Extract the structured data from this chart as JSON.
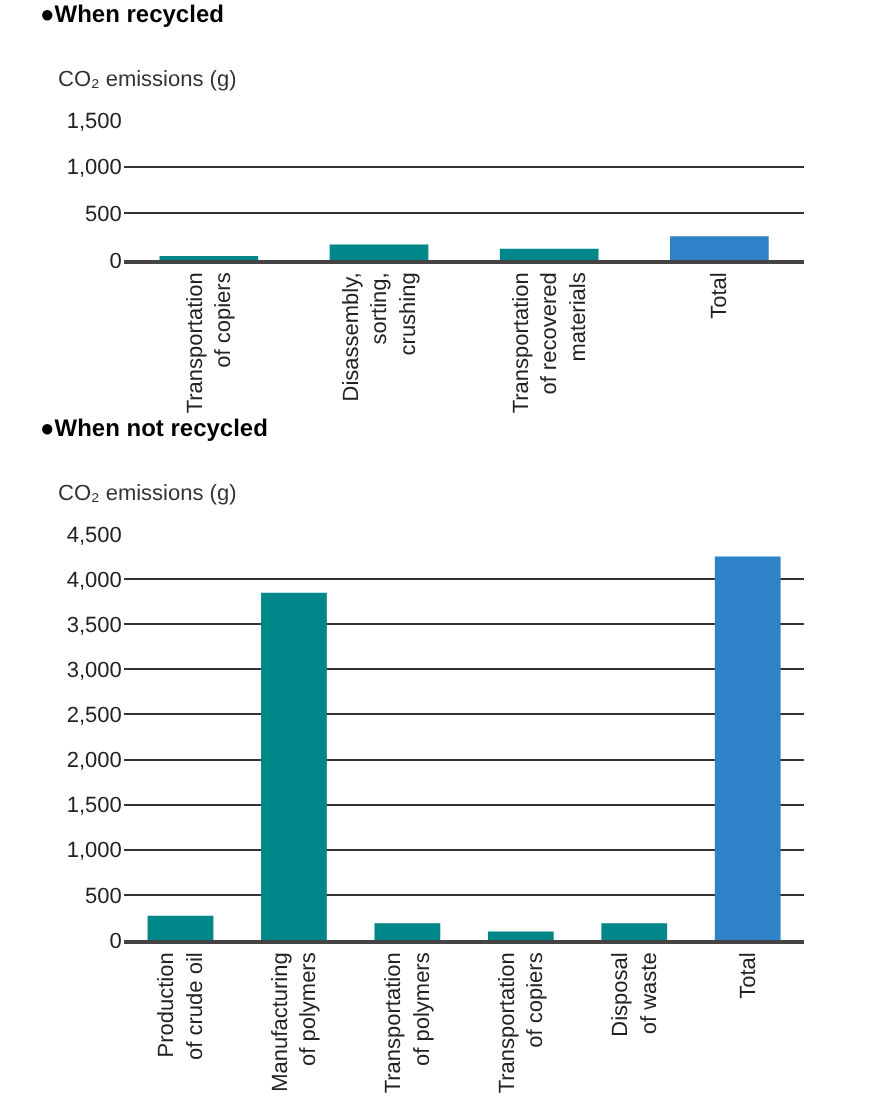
{
  "chart_data": [
    {
      "type": "bar",
      "title": "●When recycled",
      "ylabel": "CO₂ emissions (g)",
      "categories": [
        "Transportation\nof copiers",
        "Disassembly,\nsorting,\ncrushing",
        "Transportation\nof recovered\nmaterials",
        "Total"
      ],
      "values": [
        30,
        165,
        120,
        255
      ],
      "colors": [
        "#00878a",
        "#00878a",
        "#00878a",
        "#2e82c8"
      ],
      "ylim": [
        0,
        1500
      ],
      "yticks": [
        {
          "value": 0,
          "label": "0"
        },
        {
          "value": 500,
          "label": "500"
        },
        {
          "value": 1000,
          "label": "1,000"
        },
        {
          "value": 1500,
          "label": "1,500"
        }
      ],
      "grid": "y",
      "legend": false
    },
    {
      "type": "bar",
      "title": "●When not recycled",
      "ylabel": "CO₂ emissions (g)",
      "categories": [
        "Production\nof crude oil",
        "Manufacturing\nof polymers",
        "Transportation\nof polymers",
        "Transportation\nof copiers",
        "Disposal\nof waste",
        "Total"
      ],
      "values": [
        270,
        3850,
        185,
        95,
        185,
        4250
      ],
      "colors": [
        "#00878a",
        "#00878a",
        "#00878a",
        "#00878a",
        "#00878a",
        "#2e82c8"
      ],
      "ylim": [
        0,
        4500
      ],
      "yticks": [
        {
          "value": 0,
          "label": "0"
        },
        {
          "value": 500,
          "label": "500"
        },
        {
          "value": 1000,
          "label": "1,000"
        },
        {
          "value": 1500,
          "label": "1,500"
        },
        {
          "value": 2000,
          "label": "2,000"
        },
        {
          "value": 2500,
          "label": "2,500"
        },
        {
          "value": 3000,
          "label": "3,000"
        },
        {
          "value": 3500,
          "label": "3,500"
        },
        {
          "value": 4000,
          "label": "4,000"
        },
        {
          "value": 4500,
          "label": "4,500"
        }
      ],
      "grid": "y",
      "legend": false
    }
  ]
}
